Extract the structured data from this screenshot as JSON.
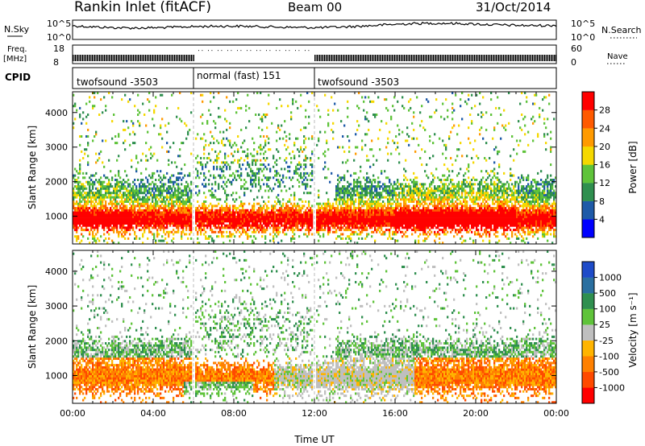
{
  "header": {
    "station": "Rankin Inlet (fitACF)",
    "beam": "Beam 00",
    "date": "31/Oct/2014"
  },
  "top_panels": {
    "nsky_label": "N.Sky",
    "nsky_ticks": [
      "10^5",
      "10^0"
    ],
    "nsearch_label": "N.Search",
    "nsearch_ticks": [
      "10^5",
      "10^0"
    ],
    "freq_label": "Freq.",
    "freq_unit": "[MHz]",
    "freq_ticks": [
      "18",
      "8"
    ],
    "nave_label": "Nave",
    "nave_ticks": [
      "60",
      "0"
    ],
    "cpid_label": "CPID",
    "cpid_segments": [
      {
        "label": "twofsound -3503",
        "start": 0,
        "end": 6
      },
      {
        "label": "normal (fast) 151",
        "start": 6,
        "end": 12
      },
      {
        "label": "twofsound -3503",
        "start": 12,
        "end": 24
      }
    ]
  },
  "colors": {
    "power_scale": [
      "#0000ff",
      "#1e5aa8",
      "#2f8f4f",
      "#5fc33a",
      "#f5d800",
      "#ff9a00",
      "#ff5a00",
      "#ff0000"
    ],
    "velocity_scale": [
      "#1e4bc8",
      "#2a6fa0",
      "#2f8f4f",
      "#5fc33a",
      "#bfbfbf",
      "#ffb400",
      "#ff8000",
      "#ff4a00",
      "#ff0000"
    ]
  },
  "chart_data": [
    {
      "type": "heatmap",
      "name": "power",
      "xlabel": "",
      "ylabel": "Slant Range [km]",
      "xlim": [
        0,
        24
      ],
      "ylim": [
        200,
        4600
      ],
      "yticks": [
        1000,
        2000,
        3000,
        4000
      ],
      "colorbar": {
        "label": "Power [dB]",
        "ticks": [
          "4",
          "8",
          "12",
          "16",
          "20",
          "24",
          "28"
        ],
        "range": [
          0,
          32
        ]
      }
    },
    {
      "type": "heatmap",
      "name": "velocity",
      "xlabel": "Time UT",
      "ylabel": "Slant Range [km]",
      "xlim": [
        0,
        24
      ],
      "ylim": [
        200,
        4600
      ],
      "yticks": [
        1000,
        2000,
        3000,
        4000
      ],
      "xticks": [
        "00:00",
        "04:00",
        "08:00",
        "12:00",
        "16:00",
        "20:00",
        "00:00"
      ],
      "colorbar": {
        "label": "Velocity [m s⁻¹]",
        "ticks": [
          "1000",
          "500",
          "100",
          "25",
          "-25",
          "-100",
          "-500",
          "-1000"
        ]
      }
    }
  ]
}
